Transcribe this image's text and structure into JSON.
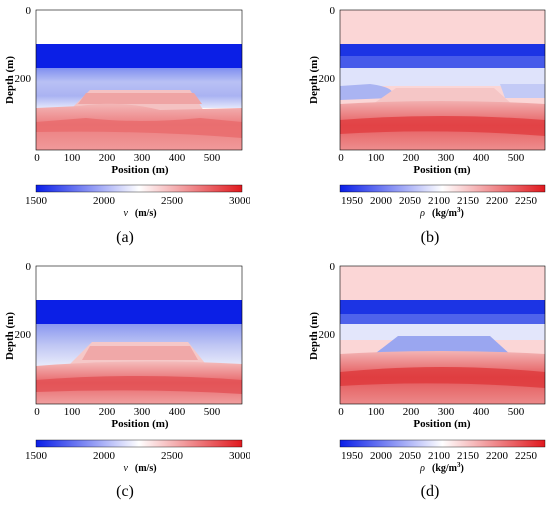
{
  "figure": {
    "panels": [
      {
        "id": "a",
        "caption": "(a)",
        "colorbar": {
          "ticks": [
            "1500",
            "2000",
            "2500",
            "3000"
          ],
          "symbol": "v",
          "unit": "(m/s)"
        },
        "colors": {
          "low": "#0a1ee8",
          "mid": "#ffffff",
          "high": "#e0191e"
        }
      },
      {
        "id": "b",
        "caption": "(b)",
        "colorbar": {
          "ticks": [
            "1950",
            "2000",
            "2050",
            "2100",
            "2150",
            "2200",
            "2250"
          ],
          "symbol": "ρ",
          "unit": "(kg/m",
          "unit_exponent": "3",
          "unit_close": ")"
        },
        "colors": {
          "low": "#0a1ee8",
          "mid": "#ffffff",
          "high": "#e0191e"
        }
      },
      {
        "id": "c",
        "caption": "(c)",
        "colorbar": {
          "ticks": [
            "1500",
            "2000",
            "2500",
            "3000"
          ],
          "symbol": "v",
          "unit": "(m/s)"
        },
        "colors": {
          "low": "#0a1ee8",
          "mid": "#ffffff",
          "high": "#e0191e"
        }
      },
      {
        "id": "d",
        "caption": "(d)",
        "colorbar": {
          "ticks": [
            "1950",
            "2000",
            "2050",
            "2100",
            "2150",
            "2200",
            "2250"
          ],
          "symbol": "ρ",
          "unit": "(kg/m",
          "unit_exponent": "3",
          "unit_close": ")"
        },
        "colors": {
          "low": "#0a1ee8",
          "mid": "#ffffff",
          "high": "#e0191e"
        }
      }
    ],
    "axes": {
      "xlabel": "Position (m)",
      "ylabel": "Depth (m)",
      "xticks": [
        "0",
        "100",
        "200",
        "300",
        "400",
        "500"
      ],
      "yticks": [
        "0",
        "200"
      ]
    }
  }
}
